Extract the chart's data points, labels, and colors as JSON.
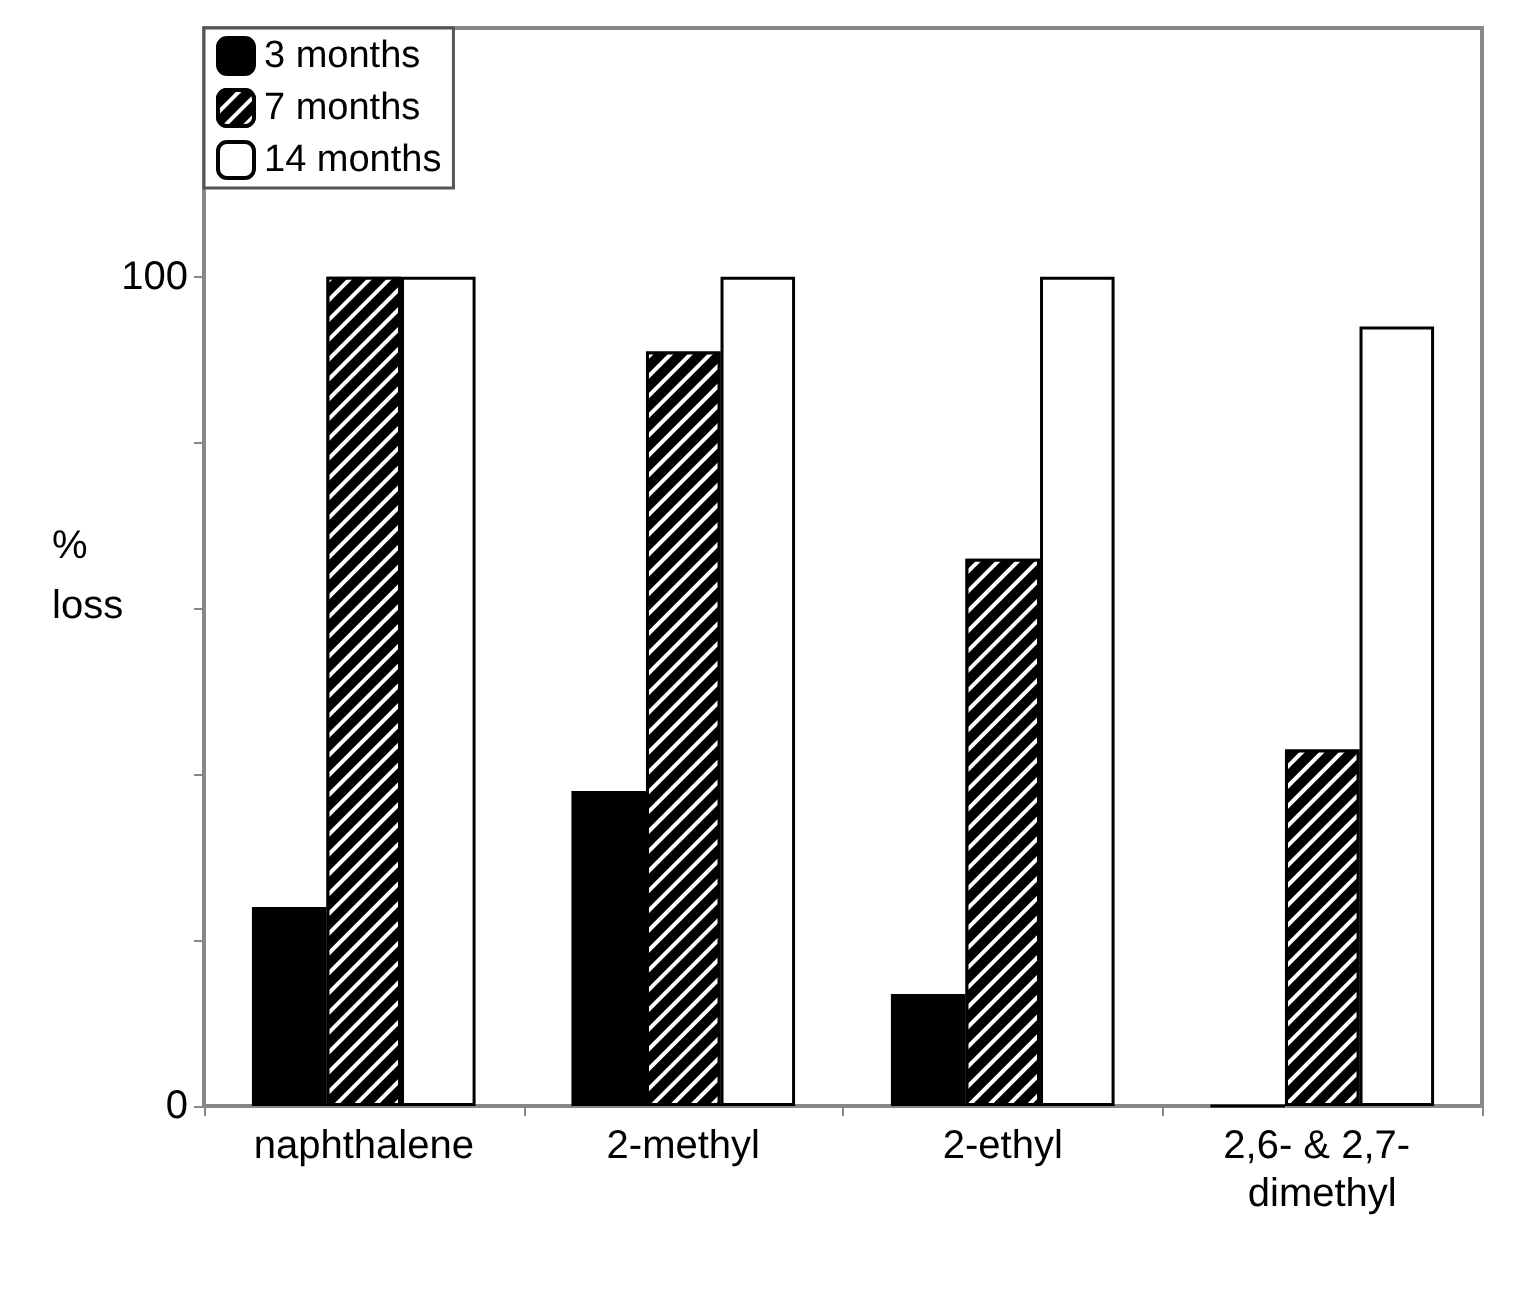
{
  "chart_data": {
    "type": "bar",
    "ylabel": "% loss",
    "categories": [
      "naphthalene",
      "2-methyl",
      "2-ethyl",
      "2,6- & 2,7- dimethyl"
    ],
    "series": [
      {
        "name": "3 months",
        "color": "#000000",
        "values": [
          24,
          38,
          13.5,
          0
        ]
      },
      {
        "name": "7 months",
        "color": "#000000",
        "values": [
          100,
          91,
          66,
          43
        ]
      },
      {
        "name": "14 months",
        "color": "#ffffff",
        "values": [
          100,
          100,
          100,
          94
        ]
      }
    ],
    "ylim": [
      0,
      130
    ],
    "yticks": [
      0,
      {
        "value": 20,
        "label": null
      },
      {
        "value": 40,
        "label": null
      },
      {
        "value": 60,
        "label": null
      },
      {
        "value": 80,
        "label": null
      },
      100
    ],
    "grid": false,
    "legend": "top left"
  }
}
